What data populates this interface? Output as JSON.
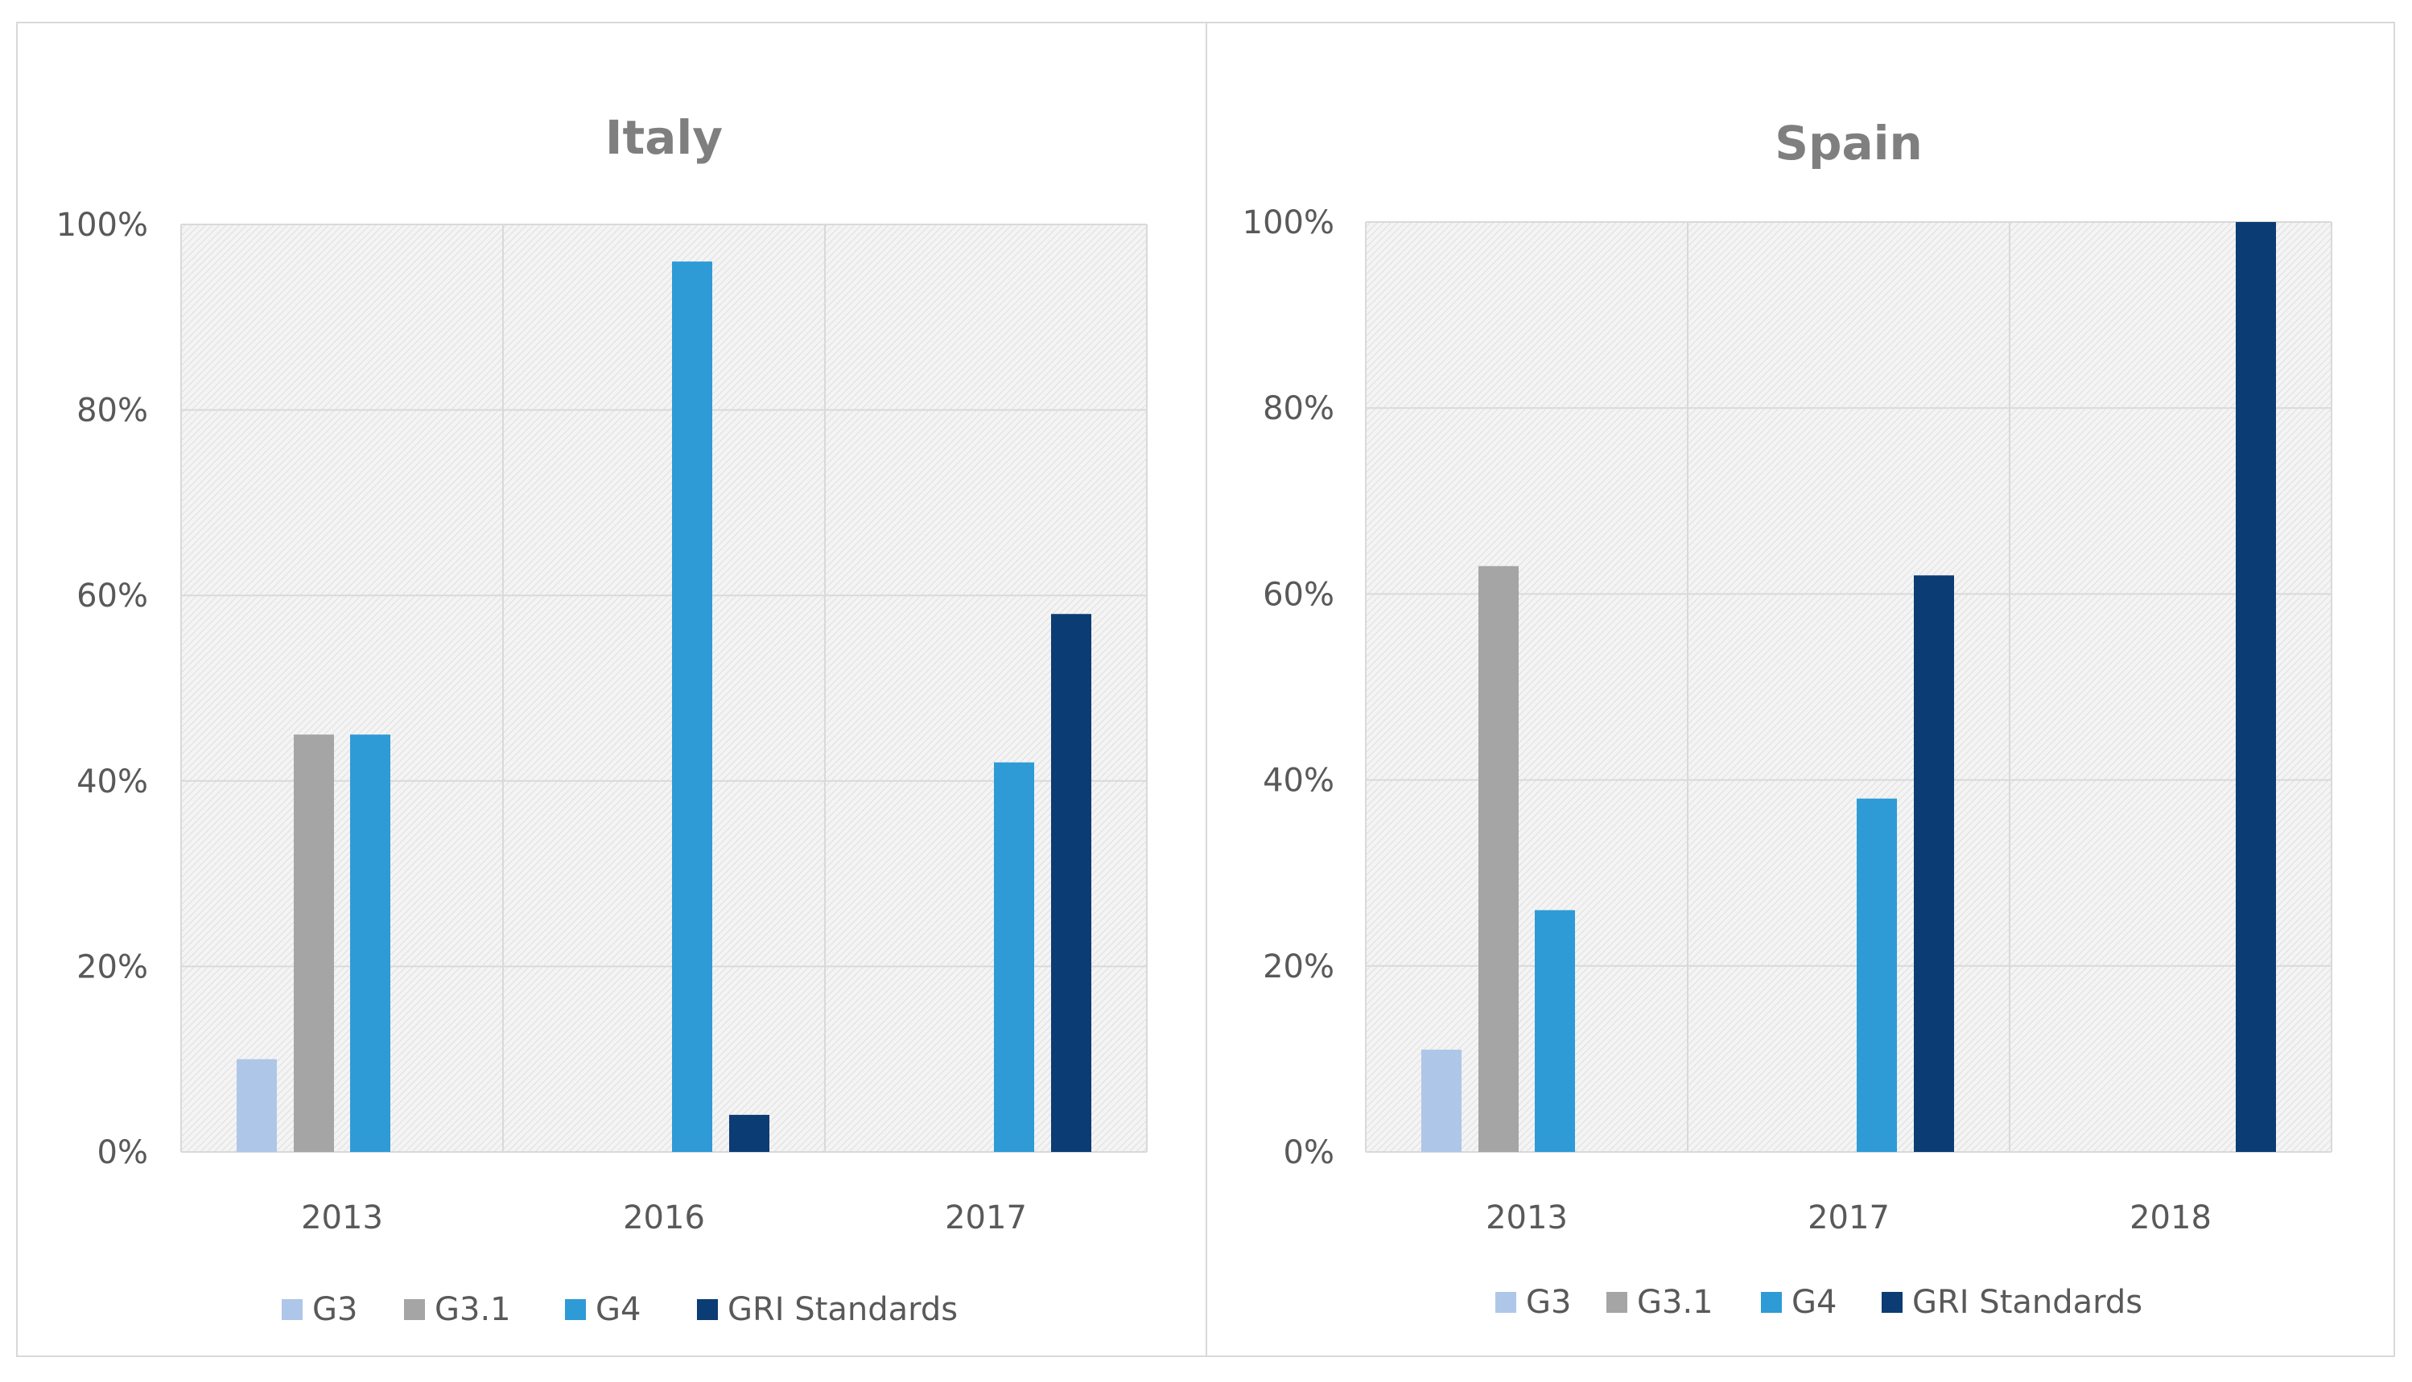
{
  "colors": {
    "G3": "#aec7e8",
    "G3.1": "#a5a5a5",
    "G4": "#2e9bd6",
    "GRI Standards": "#0b3c74"
  },
  "chart_data": [
    {
      "type": "bar",
      "title": "Italy",
      "categories": [
        "2013",
        "2016",
        "2017"
      ],
      "ylim": [
        0,
        100
      ],
      "yticks": [
        "0%",
        "20%",
        "40%",
        "60%",
        "80%",
        "100%"
      ],
      "xlabel": "",
      "ylabel": "",
      "legend": "bottom",
      "series": [
        {
          "name": "G3",
          "values": [
            10,
            0,
            0
          ]
        },
        {
          "name": "G3.1",
          "values": [
            45,
            0,
            0
          ]
        },
        {
          "name": "G4",
          "values": [
            45,
            96,
            42
          ]
        },
        {
          "name": "GRI Standards",
          "values": [
            0,
            4,
            58
          ]
        }
      ]
    },
    {
      "type": "bar",
      "title": "Spain",
      "categories": [
        "2013",
        "2017",
        "2018"
      ],
      "ylim": [
        0,
        100
      ],
      "yticks": [
        "0%",
        "20%",
        "40%",
        "60%",
        "80%",
        "100%"
      ],
      "xlabel": "",
      "ylabel": "",
      "legend": "bottom",
      "series": [
        {
          "name": "G3",
          "values": [
            11,
            0,
            0
          ]
        },
        {
          "name": "G3.1",
          "values": [
            63,
            0,
            0
          ]
        },
        {
          "name": "G4",
          "values": [
            26,
            38,
            0
          ]
        },
        {
          "name": "GRI Standards",
          "values": [
            0,
            62,
            100
          ]
        }
      ]
    }
  ]
}
